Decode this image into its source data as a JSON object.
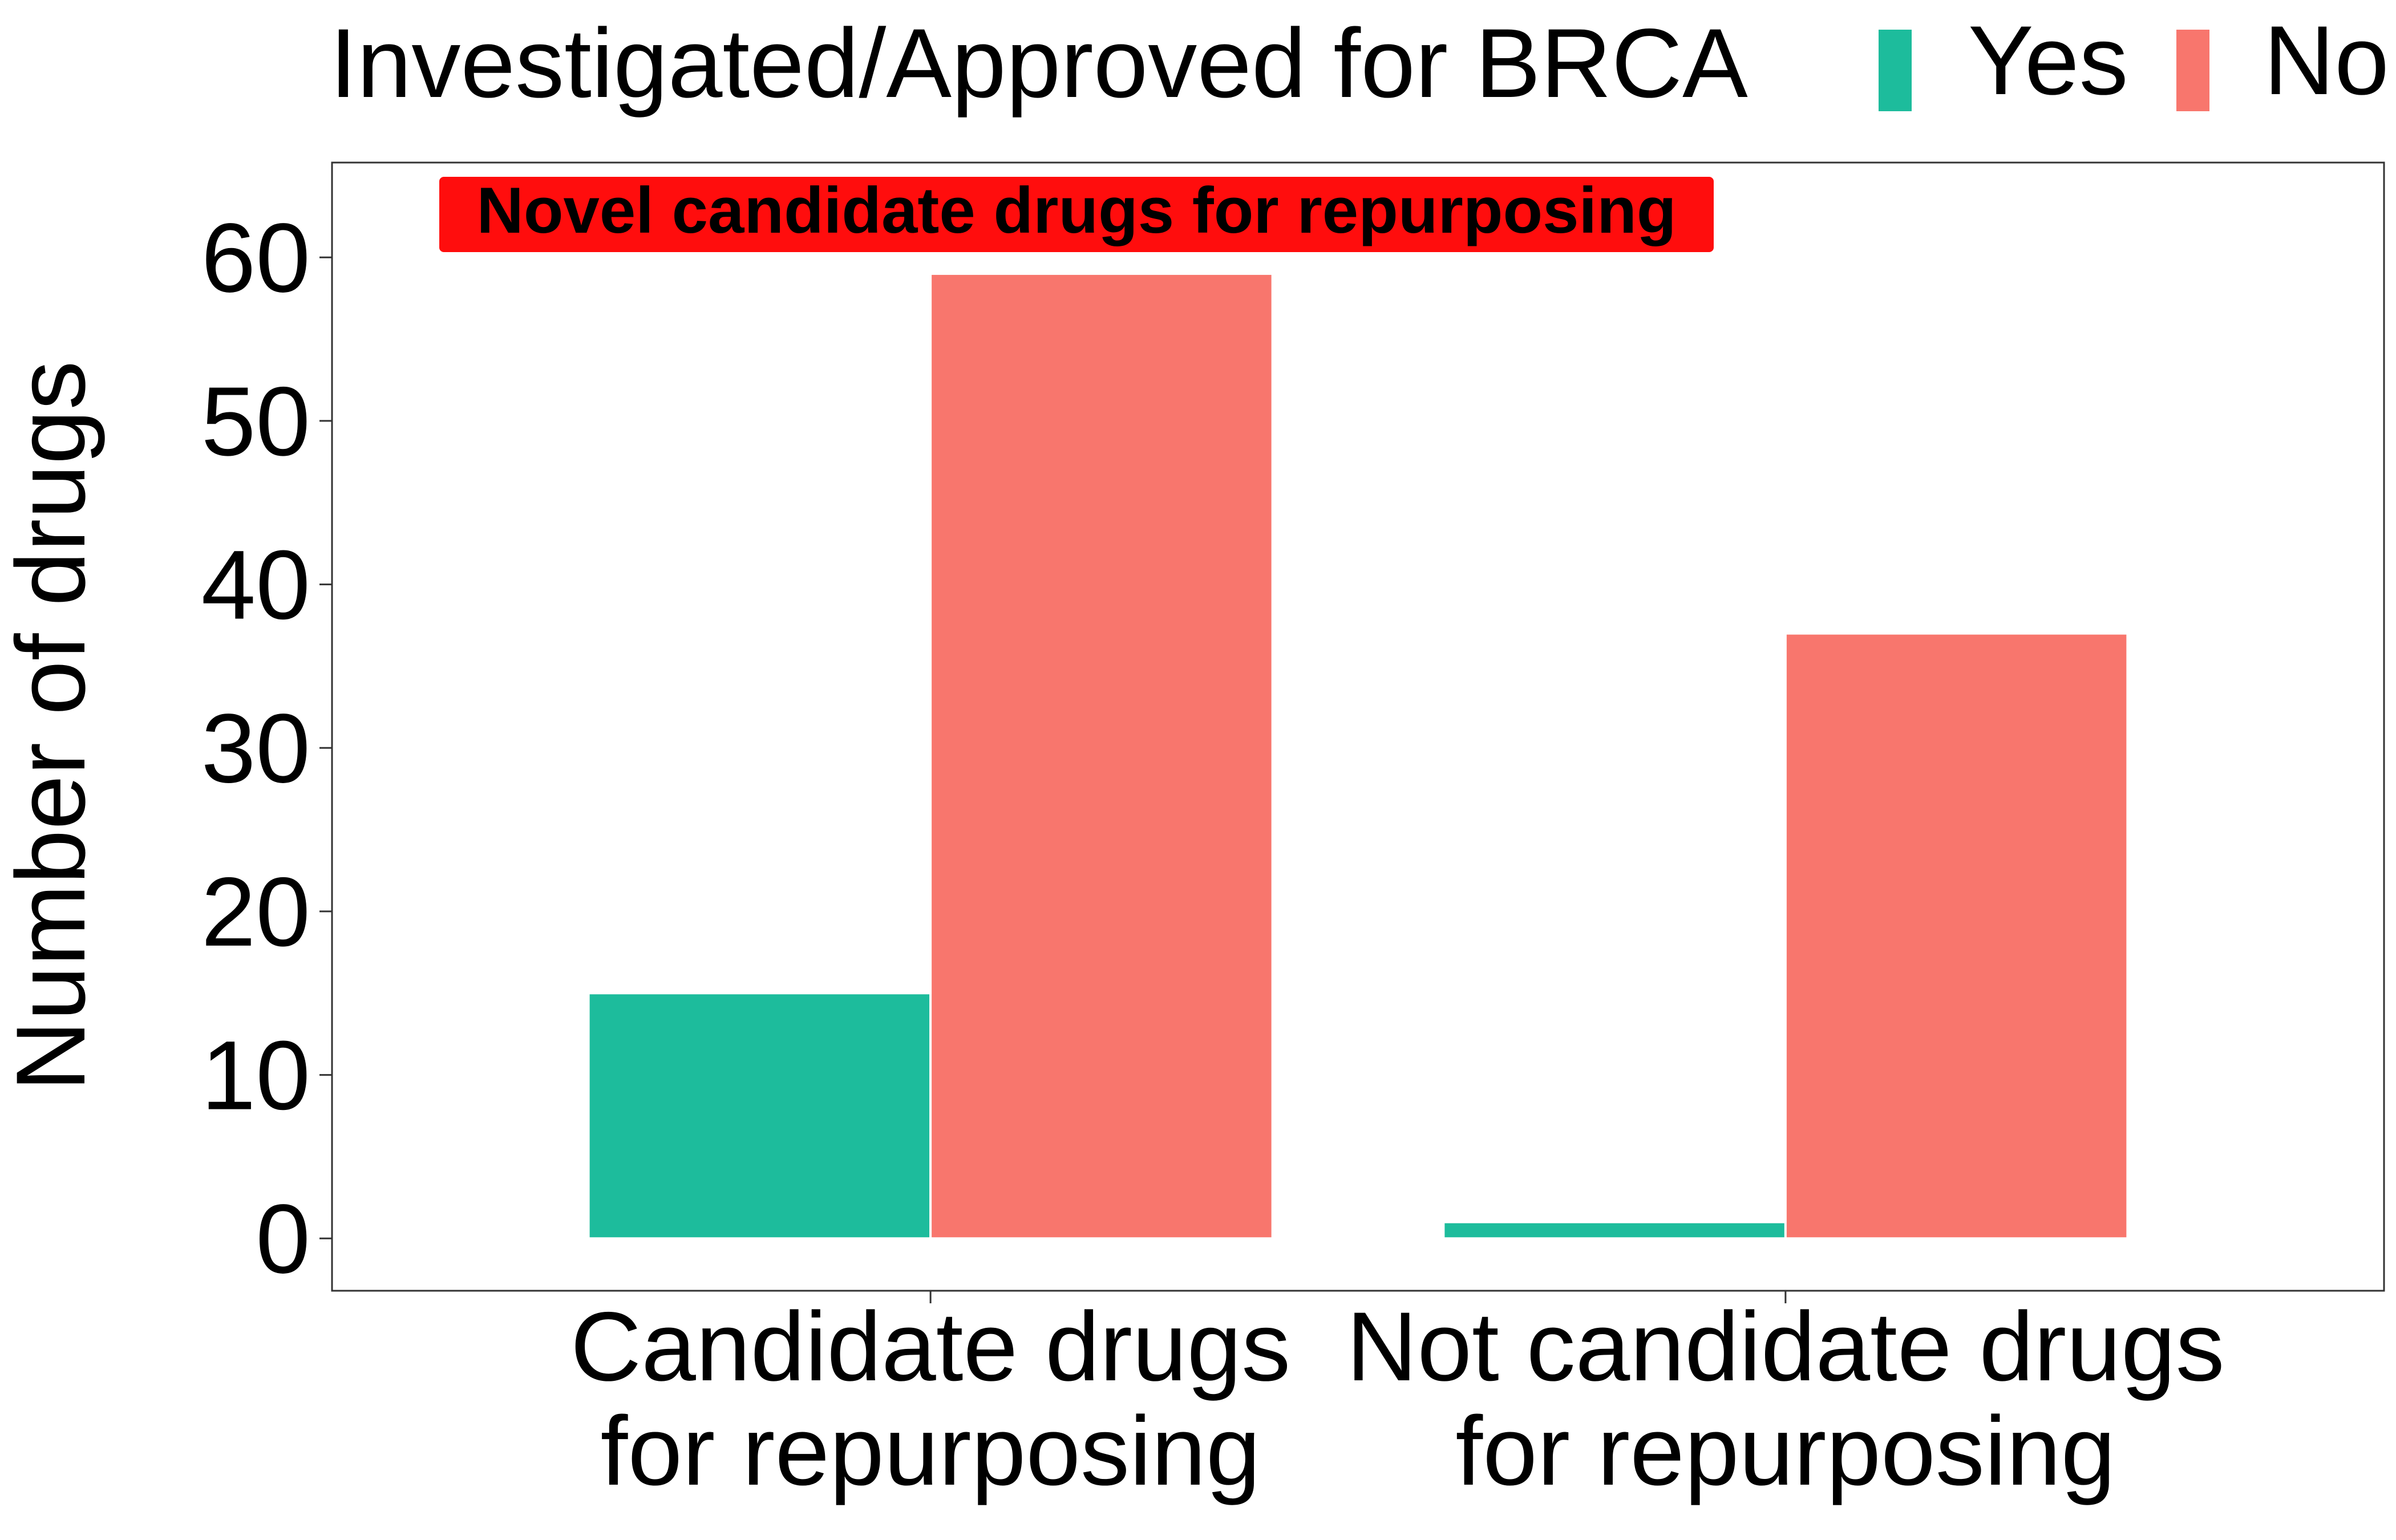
{
  "chart_data": {
    "type": "bar",
    "categories": [
      "Candidate drugs for repurposing",
      "Not candidate drugs for repurposing"
    ],
    "category_tick_lines": [
      [
        "Candidate drugs",
        "for repurposing"
      ],
      [
        "Not candidate drugs",
        "for repurposing"
      ]
    ],
    "series": [
      {
        "name": "Yes",
        "color": "#1DBC9C",
        "values": [
          15,
          1
        ]
      },
      {
        "name": "No",
        "color": "#F8766D",
        "values": [
          59,
          37
        ]
      }
    ],
    "legend": {
      "title": "Investigated/Approved for BRCA",
      "position": "top",
      "entries": [
        "Yes",
        "No"
      ]
    },
    "ylabel": "Number of drugs",
    "xlabel": "",
    "ylim": [
      -3.2,
      65.8
    ],
    "yticks": [
      0,
      10,
      20,
      30,
      40,
      50,
      60
    ],
    "annotation": {
      "text": "Novel candidate drugs for repurposing",
      "background": "#FF0D0D",
      "color": "#FFFFFF"
    },
    "grid": false
  }
}
